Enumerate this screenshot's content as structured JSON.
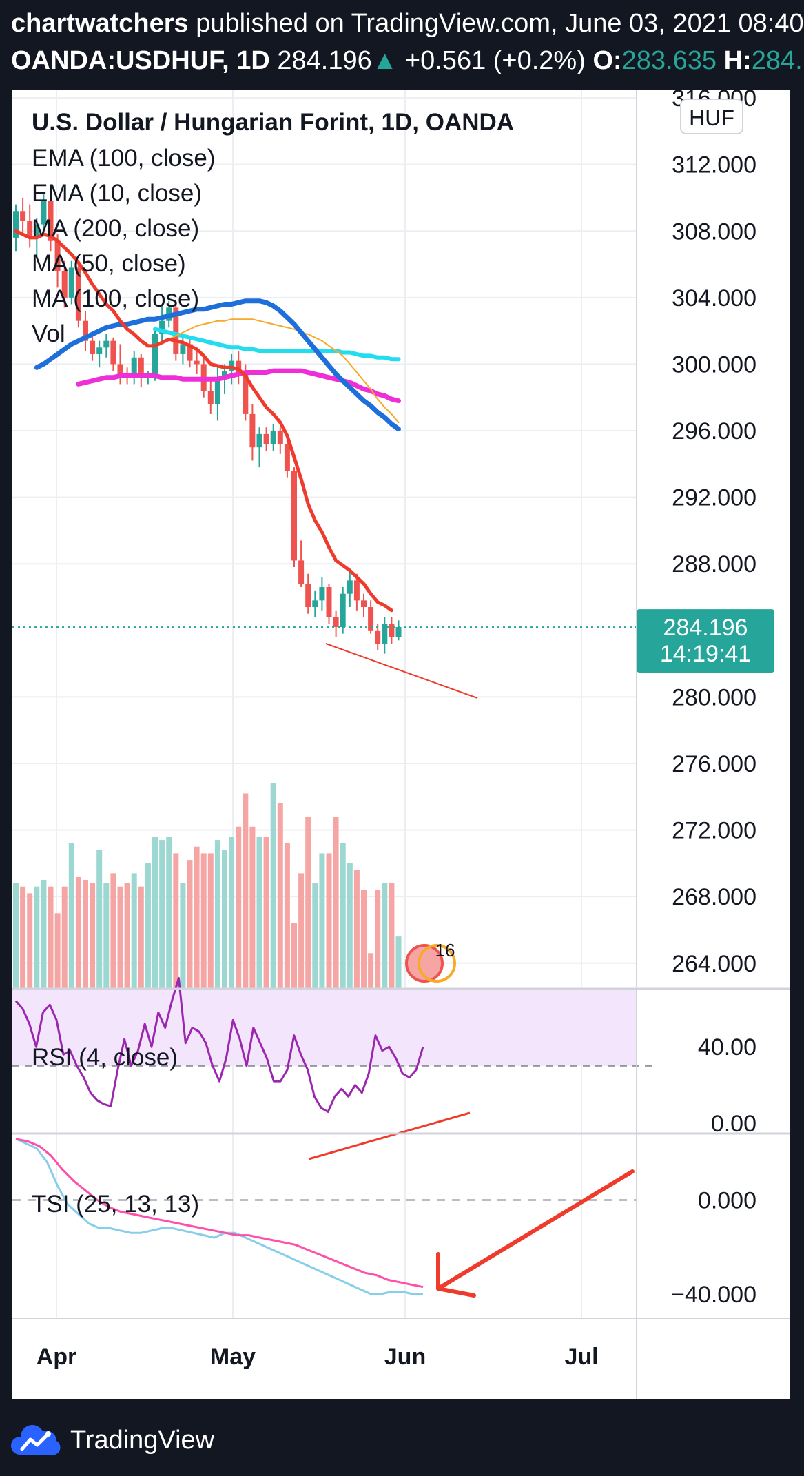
{
  "header": {
    "author": "chartwatchers",
    "published": " published on TradingView.com, June 03, 2021 08:40",
    "symbol": "OANDA:USDHUF, 1D",
    "price": "284.196",
    "change": "+0.561 (+0.2%)",
    "open_label": "O:",
    "open_value": "283.635",
    "high_label": "H:",
    "high_value": "284.",
    "up_arrow": "▲"
  },
  "legend": {
    "title": "U.S. Dollar / Hungarian Forint, 1D, OANDA",
    "items": [
      "EMA (100, close)",
      "EMA (10, close)",
      "MA (200, close)",
      "MA (50, close)",
      "MA (100, close)",
      "Vol"
    ]
  },
  "rsi_label": "RSI (4, close)",
  "tsi_label": "TSI (25, 13, 13)",
  "currency_badge": "HUF",
  "last_price_tag": {
    "price": "284.196",
    "countdown": "14:19:41"
  },
  "event_badge": "16",
  "footer": {
    "brand": "TradingView"
  },
  "colors": {
    "background": "#131722",
    "up": "#26a69a",
    "down": "#ef5350",
    "ema100": "#1e6fd9",
    "ema10": "#ef3b2c",
    "ma200": "#ee2fd8",
    "ma50": "#f7a928",
    "ma100": "#22ddee",
    "rsi": "#9b27b0",
    "tsi": "#87ceeb",
    "tsi_signal": "#ff4fa8",
    "annotation": "#ef3b2c"
  },
  "chart_data": {
    "type": "candlestick",
    "x_ticks": [
      "Apr",
      "May",
      "Jun",
      "Jul"
    ],
    "price_axis": {
      "ticks": [
        "316.000",
        "312.000",
        "308.000",
        "304.000",
        "300.000",
        "296.000",
        "292.000",
        "288.000",
        "280.000",
        "276.000",
        "272.000",
        "268.000",
        "264.000"
      ],
      "ylim": [
        262.5,
        316.5
      ]
    },
    "last_price": 284.196,
    "candles": [
      [
        307.6,
        309.6,
        306.8,
        309.2
      ],
      [
        309.2,
        310.0,
        307.8,
        308.6
      ],
      [
        308.6,
        309.6,
        307.0,
        307.6
      ],
      [
        307.6,
        308.8,
        306.4,
        308.4
      ],
      [
        308.4,
        310.2,
        307.8,
        309.8
      ],
      [
        309.8,
        310.4,
        306.8,
        307.4
      ],
      [
        307.4,
        307.8,
        304.6,
        305.6
      ],
      [
        305.6,
        306.2,
        303.4,
        304.0
      ],
      [
        304.0,
        306.2,
        303.6,
        305.8
      ],
      [
        305.8,
        306.0,
        302.2,
        302.6
      ],
      [
        302.6,
        303.2,
        300.8,
        301.4
      ],
      [
        301.4,
        301.8,
        300.2,
        300.6
      ],
      [
        300.6,
        301.4,
        299.8,
        301.0
      ],
      [
        301.0,
        301.8,
        300.4,
        301.4
      ],
      [
        301.4,
        301.6,
        299.6,
        300.0
      ],
      [
        300.0,
        301.2,
        298.8,
        299.4
      ],
      [
        299.4,
        299.8,
        298.8,
        299.2
      ],
      [
        299.2,
        300.8,
        298.8,
        300.4
      ],
      [
        300.4,
        300.6,
        298.6,
        299.2
      ],
      [
        299.2,
        299.6,
        298.8,
        299.4
      ],
      [
        299.4,
        302.2,
        299.0,
        301.8
      ],
      [
        301.8,
        303.6,
        301.4,
        302.6
      ],
      [
        302.6,
        303.8,
        302.2,
        303.4
      ],
      [
        303.4,
        303.6,
        300.2,
        300.6
      ],
      [
        300.6,
        301.8,
        300.0,
        301.2
      ],
      [
        301.2,
        301.6,
        299.8,
        300.2
      ],
      [
        300.2,
        300.8,
        299.4,
        300.0
      ],
      [
        300.0,
        300.4,
        298.0,
        298.4
      ],
      [
        298.4,
        299.0,
        297.0,
        297.6
      ],
      [
        297.6,
        299.8,
        296.6,
        299.2
      ],
      [
        299.2,
        300.0,
        298.2,
        299.6
      ],
      [
        299.6,
        300.6,
        298.8,
        300.2
      ],
      [
        300.2,
        300.8,
        298.8,
        299.4
      ],
      [
        299.4,
        300.0,
        296.6,
        297.0
      ],
      [
        297.0,
        297.6,
        294.2,
        295.0
      ],
      [
        295.0,
        296.2,
        293.8,
        295.8
      ],
      [
        295.8,
        296.2,
        294.8,
        295.2
      ],
      [
        295.2,
        296.4,
        294.8,
        296.0
      ],
      [
        296.0,
        296.2,
        294.6,
        295.2
      ],
      [
        295.2,
        295.8,
        293.2,
        293.6
      ],
      [
        293.6,
        293.8,
        287.8,
        288.2
      ],
      [
        288.2,
        289.4,
        286.6,
        286.8
      ],
      [
        286.8,
        287.4,
        285.0,
        285.4
      ],
      [
        285.4,
        286.4,
        284.8,
        285.8
      ],
      [
        285.8,
        287.2,
        285.2,
        286.6
      ],
      [
        286.6,
        286.8,
        284.4,
        284.8
      ],
      [
        284.8,
        285.2,
        283.6,
        284.2
      ],
      [
        284.2,
        286.6,
        283.8,
        286.2
      ],
      [
        286.2,
        287.6,
        285.4,
        287.0
      ],
      [
        287.0,
        287.4,
        285.2,
        285.8
      ],
      [
        285.8,
        286.2,
        284.8,
        285.4
      ],
      [
        285.4,
        285.8,
        283.8,
        284.0
      ],
      [
        284.0,
        284.4,
        282.8,
        283.2
      ],
      [
        283.2,
        284.8,
        282.6,
        284.4
      ],
      [
        284.4,
        284.8,
        283.2,
        283.6
      ],
      [
        283.6,
        284.6,
        283.4,
        284.2
      ]
    ],
    "volume_scale": [
      263.0,
      276.5
    ],
    "volumes": [
      268.8,
      268.6,
      268.2,
      268.6,
      269.0,
      268.6,
      267.0,
      268.6,
      271.2,
      269.2,
      269.0,
      268.8,
      270.8,
      268.8,
      269.4,
      268.6,
      268.8,
      269.4,
      268.6,
      270.0,
      271.6,
      271.4,
      271.6,
      270.6,
      268.8,
      270.2,
      271.0,
      270.6,
      270.6,
      271.4,
      270.8,
      271.6,
      272.2,
      274.2,
      272.2,
      271.6,
      271.6,
      274.8,
      273.6,
      271.2,
      266.4,
      269.4,
      272.8,
      268.8,
      270.6,
      270.6,
      272.8,
      271.2,
      270.0,
      269.6,
      268.4,
      264.6,
      268.4,
      268.8,
      268.8,
      265.6
    ],
    "series": [
      {
        "name": "EMA (100, close)",
        "values": [
          299.8,
          300.0,
          300.3,
          300.6,
          300.9,
          301.2,
          301.4,
          301.6,
          301.8,
          302.0,
          302.2,
          302.3,
          302.4,
          302.4,
          302.5,
          302.6,
          302.7,
          302.7,
          302.8,
          302.9,
          303.0,
          303.1,
          303.2,
          303.3,
          303.3,
          303.4,
          303.5,
          303.6,
          303.6,
          303.7,
          303.8,
          303.8,
          303.8,
          303.7,
          303.5,
          303.2,
          302.8,
          302.4,
          301.9,
          301.4,
          300.9,
          300.4,
          299.9,
          299.4,
          299.0,
          298.6,
          298.2,
          297.8,
          297.5,
          297.1,
          296.8,
          296.4,
          296.1
        ]
      },
      {
        "name": "EMA (10, close)",
        "values": [
          308.0,
          307.8,
          307.6,
          307.6,
          307.8,
          307.7,
          307.4,
          307.0,
          306.6,
          306.1,
          305.5,
          304.8,
          304.2,
          303.6,
          303.2,
          302.6,
          302.1,
          301.8,
          301.4,
          301.1,
          301.1,
          301.3,
          301.5,
          301.4,
          301.3,
          301.1,
          300.9,
          300.5,
          300.0,
          299.9,
          299.8,
          299.8,
          299.7,
          299.3,
          298.6,
          298.0,
          297.4,
          297.0,
          296.5,
          295.7,
          294.4,
          293.1,
          291.6,
          290.6,
          289.9,
          289.0,
          288.2,
          287.9,
          287.6,
          287.2,
          286.8,
          286.2,
          285.7,
          285.5,
          285.2
        ]
      },
      {
        "name": "MA (200, close)",
        "values": [
          298.8,
          298.9,
          299.0,
          299.1,
          299.2,
          299.2,
          299.3,
          299.3,
          299.3,
          299.3,
          299.3,
          299.3,
          299.2,
          299.2,
          299.2,
          299.1,
          299.1,
          299.1,
          299.1,
          299.1,
          299.1,
          299.2,
          299.3,
          299.4,
          299.5,
          299.5,
          299.5,
          299.5,
          299.6,
          299.6,
          299.6,
          299.6,
          299.6,
          299.5,
          299.4,
          299.3,
          299.2,
          299.1,
          299.0,
          298.9,
          298.7,
          298.5,
          298.4,
          298.2,
          298.1,
          297.9,
          297.8
        ]
      },
      {
        "name": "MA (50, close)",
        "values": [
          301.5,
          301.7,
          301.9,
          302.1,
          302.3,
          302.4,
          302.5,
          302.6,
          302.6,
          302.7,
          302.7,
          302.7,
          302.7,
          302.6,
          302.5,
          302.4,
          302.3,
          302.2,
          302.1,
          301.9,
          301.8,
          301.6,
          301.4,
          301.1,
          300.8,
          300.5,
          300.0,
          299.5,
          299.0,
          298.5,
          297.9,
          297.4,
          297.0,
          296.5
        ]
      },
      {
        "name": "MA (100, close)",
        "values": [
          302.1,
          302.0,
          301.9,
          301.8,
          301.7,
          301.6,
          301.5,
          301.4,
          301.3,
          301.2,
          301.1,
          301.0,
          301.0,
          300.9,
          300.9,
          300.8,
          300.8,
          300.8,
          300.8,
          300.8,
          300.8,
          300.8,
          300.8,
          300.8,
          300.8,
          300.8,
          300.8,
          300.7,
          300.7,
          300.6,
          300.5,
          300.5,
          300.4,
          300.4,
          300.3,
          300.3
        ]
      }
    ],
    "rsi": {
      "name": "RSI (4, close)",
      "ticks": [
        "40.00",
        "0.00"
      ],
      "ylim": [
        -5,
        70
      ],
      "band": [
        30,
        70
      ],
      "values": [
        64,
        60,
        52,
        40,
        58,
        62,
        54,
        36,
        38,
        30,
        24,
        16,
        12,
        10,
        9,
        28,
        44,
        30,
        38,
        52,
        40,
        58,
        50,
        64,
        76,
        42,
        50,
        48,
        42,
        30,
        22,
        34,
        54,
        44,
        30,
        50,
        42,
        34,
        22,
        22,
        28,
        46,
        36,
        28,
        14,
        8,
        6,
        14,
        18,
        14,
        20,
        16,
        26,
        46,
        38,
        40,
        34,
        26,
        24,
        28,
        40
      ]
    },
    "tsi": {
      "name": "TSI (25, 13, 13)",
      "ticks": [
        "0.000",
        "-40.000"
      ],
      "ylim": [
        -50,
        28
      ],
      "values": [
        26,
        24,
        22,
        16,
        6,
        -2,
        -6,
        -10,
        -12,
        -12,
        -13,
        -14,
        -14,
        -13,
        -12,
        -12,
        -13,
        -14,
        -15,
        -16,
        -14,
        -14,
        -16,
        -18,
        -20,
        -22,
        -24,
        -26,
        -28,
        -30,
        -32,
        -34,
        -36,
        -38,
        -40,
        -40,
        -39,
        -39,
        -40,
        -40
      ],
      "signal": [
        26,
        25,
        23,
        19,
        13,
        8,
        4,
        0,
        -3,
        -5,
        -6,
        -7,
        -8,
        -9,
        -10,
        -11,
        -12,
        -13,
        -14,
        -15,
        -15,
        -16,
        -17,
        -18,
        -19,
        -21,
        -23,
        -25,
        -27,
        -29,
        -31,
        -32,
        -34,
        -35,
        -36,
        -37
      ]
    }
  }
}
